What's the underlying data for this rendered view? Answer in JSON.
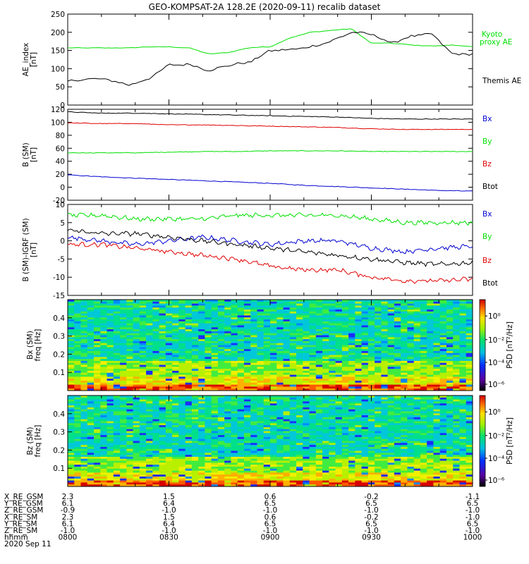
{
  "title": "GEO-KOMPSAT-2A 128.2E (2020-09-11) recalib dataset",
  "colors": {
    "black": "#000000",
    "red": "#e00000",
    "green": "#00e000",
    "blue": "#0000d0"
  },
  "panels": {
    "ae": {
      "ylabel": [
        "AE_index",
        "[nT]"
      ],
      "ylim": [
        0,
        250
      ],
      "yticks": [
        "0",
        "50",
        "100",
        "150",
        "200",
        "250"
      ],
      "legend": [
        {
          "text": "Kyoto",
          "color": "green"
        },
        {
          "text": "proxy AE",
          "color": "green"
        },
        {
          "text": "Themis AE",
          "color": "black"
        }
      ]
    },
    "b": {
      "ylabel": [
        "B (SM)",
        "[nT]"
      ],
      "ylim": [
        -20,
        120
      ],
      "yticks": [
        "-20",
        "0",
        "20",
        "40",
        "60",
        "80",
        "100",
        "120"
      ],
      "legend": [
        {
          "text": "Bx",
          "color": "blue"
        },
        {
          "text": "By",
          "color": "green"
        },
        {
          "text": "Bz",
          "color": "red"
        },
        {
          "text": "Btot",
          "color": "black"
        }
      ]
    },
    "db": {
      "ylabel": [
        "B (SM)-IGRF (SM)",
        "[nT]"
      ],
      "ylim": [
        -15,
        10
      ],
      "yticks": [
        "-15",
        "-10",
        "-5",
        "0",
        "5",
        "10"
      ],
      "legend": [
        {
          "text": "Bx",
          "color": "blue"
        },
        {
          "text": "By",
          "color": "green"
        },
        {
          "text": "Bz",
          "color": "red"
        },
        {
          "text": "Btot",
          "color": "black"
        }
      ]
    },
    "specx": {
      "ylabel": [
        "Bx (SM)",
        "freq [Hz]"
      ],
      "ylim": [
        0,
        0.5
      ],
      "yticks": [
        "0.1",
        "0.2",
        "0.3",
        "0.4"
      ],
      "cbar_label": "PSD [nT²/Hz]",
      "cbar_ticks": [
        "10⁰",
        "10⁻²",
        "10⁻⁴",
        "10⁻⁶"
      ]
    },
    "specz": {
      "ylabel": [
        "Bz (SM)",
        "freq [Hz]"
      ],
      "ylim": [
        0,
        0.5
      ],
      "yticks": [
        "0.1",
        "0.2",
        "0.3",
        "0.4"
      ],
      "cbar_label": "PSD [nT²/Hz]",
      "cbar_ticks": [
        "10⁰",
        "10⁻²",
        "10⁻⁴",
        "10⁻⁶"
      ]
    }
  },
  "ephemeris": {
    "labels": [
      "X_RE_GSM",
      "Y_RE_GSM",
      "Z_RE_GSM",
      "X_RE_SM",
      "Y_RE_SM",
      "Z_RE_SM",
      "hhmm",
      "2020 Sep 11"
    ],
    "columns": [
      [
        "2.3",
        "6.1",
        "-0.9",
        "2.3",
        "6.1",
        "-1.0",
        "0800"
      ],
      [
        "1.5",
        "6.4",
        "-1.0",
        "1.5",
        "6.4",
        "-1.0",
        "0830"
      ],
      [
        "0.6",
        "6.5",
        "-1.0",
        "0.6",
        "6.5",
        "-1.0",
        "0900"
      ],
      [
        "-0.2",
        "6.5",
        "-1.0",
        "-0.2",
        "6.5",
        "-1.0",
        "0930"
      ],
      [
        "-1.1",
        "6.5",
        "-1.0",
        "-1.0",
        "6.5",
        "-1.0",
        "1000"
      ]
    ]
  },
  "chart_data": [
    {
      "type": "line",
      "title": "GEO-KOMPSAT-2A 128.2E (2020-09-11) recalib dataset",
      "xlim": [
        "08:00",
        "10:00"
      ],
      "ylabel": "AE_index [nT]",
      "ylim": [
        0,
        250
      ],
      "x": [
        "08:00",
        "08:06",
        "08:12",
        "08:18",
        "08:24",
        "08:30",
        "08:36",
        "08:42",
        "08:48",
        "08:54",
        "09:00",
        "09:06",
        "09:12",
        "09:18",
        "09:24",
        "09:30",
        "09:36",
        "09:42",
        "09:48",
        "09:54",
        "10:00"
      ],
      "series": [
        {
          "name": "Kyoto proxy AE",
          "color": "green",
          "values": [
            157,
            157,
            157,
            157,
            160,
            160,
            157,
            140,
            145,
            158,
            160,
            185,
            200,
            205,
            210,
            170,
            170,
            165,
            162,
            165,
            160
          ]
        },
        {
          "name": "Themis AE",
          "color": "black",
          "values": [
            65,
            72,
            70,
            55,
            72,
            110,
            112,
            95,
            110,
            118,
            150,
            152,
            160,
            175,
            200,
            195,
            170,
            190,
            195,
            140,
            140
          ]
        }
      ]
    },
    {
      "type": "line",
      "ylabel": "B (SM) [nT]",
      "ylim": [
        -20,
        120
      ],
      "x": [
        "08:00",
        "08:10",
        "08:20",
        "08:30",
        "08:40",
        "08:50",
        "09:00",
        "09:10",
        "09:20",
        "09:30",
        "09:40",
        "09:50",
        "10:00"
      ],
      "series": [
        {
          "name": "Bx",
          "color": "blue",
          "values": [
            19,
            16,
            14,
            12,
            10,
            8,
            6,
            3,
            1,
            -1,
            -3,
            -5,
            -6
          ]
        },
        {
          "name": "By",
          "color": "green",
          "values": [
            53,
            53,
            53,
            54,
            55,
            55,
            56,
            56,
            56,
            55,
            55,
            55,
            55
          ]
        },
        {
          "name": "Bz",
          "color": "red",
          "values": [
            99,
            98,
            98,
            96,
            96,
            95,
            94,
            93,
            92,
            90,
            89,
            89,
            89
          ]
        },
        {
          "name": "Btot",
          "color": "black",
          "values": [
            116,
            114,
            114,
            113,
            112,
            111,
            110,
            109,
            108,
            106,
            105,
            105,
            105
          ]
        }
      ]
    },
    {
      "type": "line",
      "ylabel": "B (SM)-IGRF (SM) [nT]",
      "ylim": [
        -15,
        10
      ],
      "x": [
        "08:00",
        "08:10",
        "08:20",
        "08:30",
        "08:40",
        "08:50",
        "09:00",
        "09:10",
        "09:20",
        "09:30",
        "09:40",
        "09:50",
        "10:00"
      ],
      "series": [
        {
          "name": "Bx",
          "color": "blue",
          "values": [
            1,
            0,
            -1,
            0,
            1,
            0,
            -1,
            0,
            0,
            -2,
            -3,
            -2,
            -1.5
          ]
        },
        {
          "name": "By",
          "color": "green",
          "values": [
            7,
            7,
            6,
            6,
            6,
            7,
            7,
            7,
            7,
            6,
            5,
            5,
            5
          ]
        },
        {
          "name": "Bz",
          "color": "red",
          "values": [
            -1,
            -1,
            -2,
            -3,
            -4,
            -5,
            -7,
            -8,
            -8,
            -10,
            -11,
            -11,
            -10.5
          ]
        },
        {
          "name": "Btot",
          "color": "black",
          "values": [
            3,
            2,
            2,
            1,
            0,
            -1,
            -2,
            -3,
            -4,
            -5,
            -6,
            -6.5,
            -6
          ]
        }
      ]
    },
    {
      "type": "heatmap",
      "ylabel": "Bx (SM) freq [Hz]",
      "ylim": [
        0,
        0.5
      ],
      "colorbar": "PSD [nT²/Hz]",
      "colorbar_ticks": [
        "10⁰",
        "10⁻²",
        "10⁻⁴",
        "10⁻⁶"
      ]
    },
    {
      "type": "heatmap",
      "ylabel": "Bz (SM) freq [Hz]",
      "ylim": [
        0,
        0.5
      ],
      "colorbar": "PSD [nT²/Hz]",
      "colorbar_ticks": [
        "10⁰",
        "10⁻²",
        "10⁻⁴",
        "10⁻⁶"
      ]
    }
  ]
}
